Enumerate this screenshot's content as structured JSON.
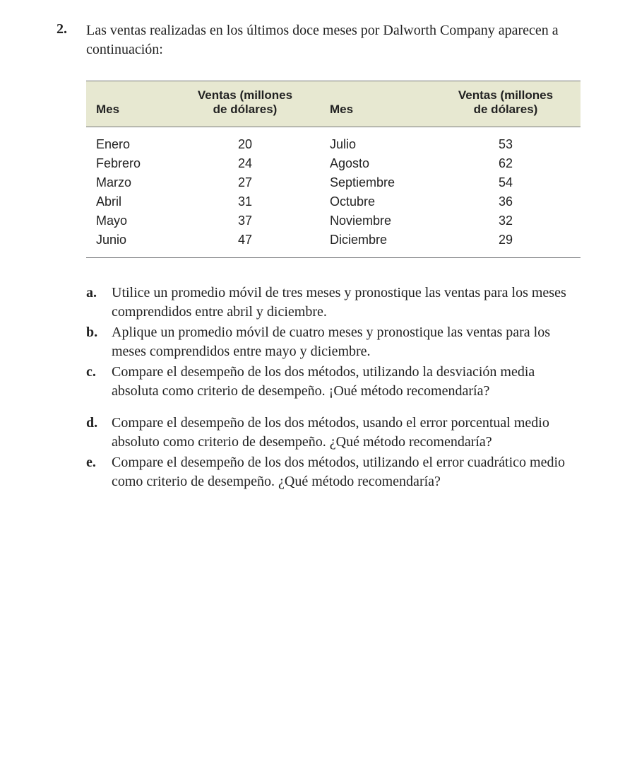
{
  "problem": {
    "number": "2.",
    "intro": "Las ventas realizadas en los últimos doce meses por Dalworth Company aparecen a continuación:"
  },
  "table": {
    "headers": {
      "month": "Mes",
      "value_line1": "Ventas (millones",
      "value_line2": "de dólares)"
    },
    "background_color": "#e7e8d1",
    "border_color": "#76787a",
    "header_font_family": "Arial, Helvetica, sans-serif",
    "header_font_weight": "bold",
    "header_fontsize": 17,
    "body_fontsize": 18,
    "left": [
      {
        "month": "Enero",
        "value": "20"
      },
      {
        "month": "Febrero",
        "value": "24"
      },
      {
        "month": "Marzo",
        "value": "27"
      },
      {
        "month": "Abril",
        "value": "31"
      },
      {
        "month": "Mayo",
        "value": "37"
      },
      {
        "month": "Junio",
        "value": "47"
      }
    ],
    "right": [
      {
        "month": "Julio",
        "value": "53"
      },
      {
        "month": "Agosto",
        "value": "62"
      },
      {
        "month": "Septiembre",
        "value": "54"
      },
      {
        "month": "Octubre",
        "value": "36"
      },
      {
        "month": "Noviembre",
        "value": "32"
      },
      {
        "month": "Diciembre",
        "value": "29"
      }
    ]
  },
  "questions": {
    "a": {
      "label": "a.",
      "text": "Utilice un promedio móvil de tres meses y pronostique las ventas para los meses comprendidos entre abril y diciembre."
    },
    "b": {
      "label": "b.",
      "text": "Aplique un promedio móvil de cuatro meses y pronostique las ventas para los meses comprendidos entre mayo y diciembre."
    },
    "c": {
      "label": "c.",
      "text": "Compare el desempeño de los dos métodos, utilizando la desviación media absoluta como criterio de desempeño. ¡Oué método recomendaría?"
    },
    "d": {
      "label": "d.",
      "text": "Compare el desempeño de los dos métodos, usando el error porcentual medio absoluto como criterio de desempeño. ¿Qué método recomendaría?"
    },
    "e": {
      "label": "e.",
      "text": "Compare el desempeño de los dos métodos, utilizando el error cuadrático medio como criterio de desempeño. ¿Qué método recomendaría?"
    }
  },
  "typography": {
    "body_font_family": "Georgia, 'Times New Roman', serif",
    "body_fontsize": 20,
    "text_color": "#222222",
    "background_color": "#ffffff"
  }
}
